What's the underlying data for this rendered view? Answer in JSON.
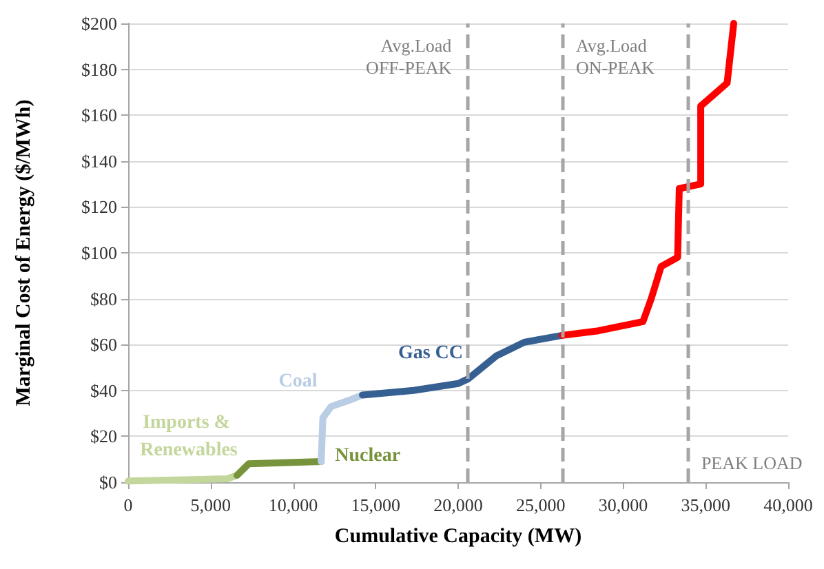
{
  "chart_data": {
    "type": "line",
    "xlabel": "Cumulative Capacity (MW)",
    "ylabel": "Marginal Cost of Energy ($/MWh)",
    "xlim": [
      0,
      40000
    ],
    "xticks": [
      {
        "value": 0,
        "label": "0"
      },
      {
        "value": 5000,
        "label": "5,000"
      },
      {
        "value": 10000,
        "label": "10,000"
      },
      {
        "value": 15000,
        "label": "15,000"
      },
      {
        "value": 20000,
        "label": "20,000"
      },
      {
        "value": 25000,
        "label": "25,000"
      },
      {
        "value": 30000,
        "label": "30,000"
      },
      {
        "value": 35000,
        "label": "35,000"
      },
      {
        "value": 40000,
        "label": "40,000"
      }
    ],
    "ylim": [
      0,
      200
    ],
    "yticks": [
      {
        "value": 0,
        "label": "$0"
      },
      {
        "value": 20,
        "label": "$20"
      },
      {
        "value": 40,
        "label": "$40"
      },
      {
        "value": 60,
        "label": "$60"
      },
      {
        "value": 80,
        "label": "$80"
      },
      {
        "value": 100,
        "label": "$100"
      },
      {
        "value": 120,
        "label": "$120"
      },
      {
        "value": 140,
        "label": "$140"
      },
      {
        "value": 160,
        "label": "$160"
      },
      {
        "value": 180,
        "label": "$180"
      },
      {
        "value": 200,
        "label": "$200"
      }
    ],
    "grid": "y",
    "legend": false,
    "marker": "none",
    "line_style": "solid",
    "series": [
      {
        "name": "Imports & Renewables",
        "color": "#c3d69b",
        "x": [
          0,
          3000,
          6000,
          6600
        ],
        "values": [
          0.5,
          1,
          1.5,
          3
        ]
      },
      {
        "name": "Nuclear",
        "color": "#77933c",
        "x": [
          6600,
          7300,
          11700
        ],
        "values": [
          3,
          8,
          9
        ]
      },
      {
        "name": "Coal",
        "color": "#b9cde5",
        "x": [
          11700,
          11800,
          12300,
          13500,
          14200
        ],
        "values": [
          9,
          28,
          33,
          36,
          38
        ]
      },
      {
        "name": "Gas CC",
        "color": "#376092",
        "x": [
          14200,
          17300,
          20000,
          20600,
          22300,
          24000,
          26300
        ],
        "values": [
          38,
          40,
          43,
          45,
          55,
          61,
          64
        ]
      },
      {
        "color": "#ff0000",
        "x": [
          26300,
          28500,
          31200,
          31700,
          32300,
          33300,
          33400,
          34700,
          34700,
          36300,
          36700
        ],
        "values": [
          64,
          66,
          70,
          80,
          94,
          98,
          128,
          130,
          164,
          174,
          200
        ]
      }
    ],
    "ref_lines": [
      {
        "axis": "x",
        "value": 20600,
        "label": "Avg.Load\nOFF-PEAK",
        "color": "#a6a6a6",
        "line_style": "dashed"
      },
      {
        "axis": "x",
        "value": 26300,
        "label": "Avg.Load\nON-PEAK",
        "color": "#a6a6a6",
        "line_style": "dashed"
      },
      {
        "axis": "x",
        "value": 33900,
        "label": "PEAK LOAD",
        "color": "#a6a6a6",
        "line_style": "dashed"
      }
    ]
  }
}
